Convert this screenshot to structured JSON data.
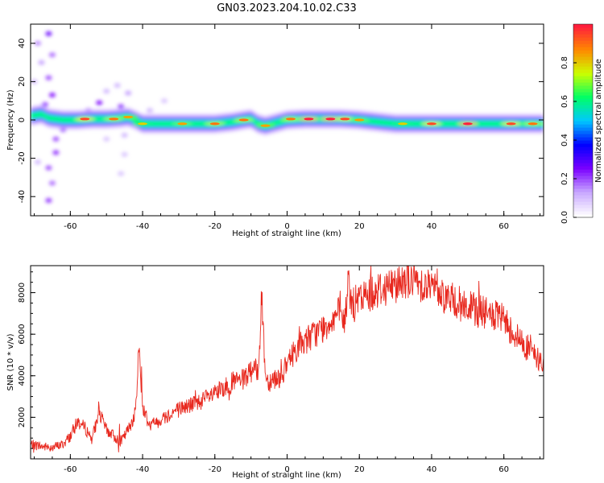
{
  "title": "GN03.2023.204.10.02.C33",
  "colors": {
    "snr_line": "#e8281e",
    "axis": "#000000",
    "background": "#ffffff",
    "colormap": [
      "#ffffff",
      "#c8a8ff",
      "#7a00ff",
      "#0000ff",
      "#00c8ff",
      "#00ff66",
      "#ccff00",
      "#ff8800",
      "#ff1e3c"
    ]
  },
  "chart_data": [
    {
      "type": "heatmap",
      "xlabel": "Height of straight line (km)",
      "ylabel": "Frequency (Hz)",
      "xlim": [
        -71,
        71
      ],
      "ylim": [
        -50,
        50
      ],
      "xticks": [
        -60,
        -40,
        -20,
        0,
        20,
        40,
        60
      ],
      "yticks": [
        -40,
        -20,
        0,
        20,
        40
      ],
      "colorbar": {
        "label": "Normalized spectral amplitude",
        "range": [
          0,
          1
        ],
        "ticks": [
          "0.0",
          "0.2",
          "0.4",
          "0.6",
          "0.8"
        ]
      },
      "ridge": {
        "x": [
          -71,
          -68,
          -66,
          -62,
          -58,
          -54,
          -50,
          -46,
          -44,
          -42,
          -40,
          -35,
          -30,
          -25,
          -20,
          -15,
          -12,
          -10,
          -8,
          -6,
          -4,
          -2,
          0,
          5,
          10,
          15,
          20,
          25,
          30,
          35,
          40,
          50,
          60,
          71
        ],
        "y": [
          2,
          3,
          1,
          0,
          0,
          0.5,
          0.5,
          1,
          1.5,
          0,
          -2,
          -2,
          -2,
          -2,
          -2,
          -1,
          0,
          0.5,
          -2,
          -3,
          -2,
          -1,
          0,
          0.5,
          0.5,
          0.5,
          0,
          -1,
          -2,
          -2,
          -2,
          -2,
          -2,
          -2
        ]
      },
      "hotspots": [
        {
          "x": -56,
          "y": 0.5,
          "amp": 0.95
        },
        {
          "x": -48,
          "y": 0.5,
          "amp": 0.9
        },
        {
          "x": -44,
          "y": 1.5,
          "amp": 0.85
        },
        {
          "x": -40,
          "y": -2,
          "amp": 0.8
        },
        {
          "x": -29,
          "y": -2,
          "amp": 0.85
        },
        {
          "x": -20,
          "y": -2,
          "amp": 0.9
        },
        {
          "x": -12,
          "y": 0,
          "amp": 0.9
        },
        {
          "x": -6,
          "y": -3,
          "amp": 0.85
        },
        {
          "x": 1,
          "y": 0.5,
          "amp": 0.9
        },
        {
          "x": 6,
          "y": 0.5,
          "amp": 1.0
        },
        {
          "x": 12,
          "y": 0.5,
          "amp": 1.0
        },
        {
          "x": 16,
          "y": 0.5,
          "amp": 0.95
        },
        {
          "x": 20,
          "y": 0,
          "amp": 0.85
        },
        {
          "x": 32,
          "y": -2,
          "amp": 0.8
        },
        {
          "x": 40,
          "y": -2,
          "amp": 0.95
        },
        {
          "x": 50,
          "y": -2,
          "amp": 1.0
        },
        {
          "x": 62,
          "y": -2,
          "amp": 0.95
        },
        {
          "x": 68,
          "y": -2,
          "amp": 0.9
        }
      ],
      "scatter_blobs": [
        {
          "x": -69,
          "y": 40,
          "amp": 0.35
        },
        {
          "x": -68,
          "y": 30,
          "amp": 0.3
        },
        {
          "x": -66,
          "y": 45,
          "amp": 0.6
        },
        {
          "x": -65,
          "y": 34,
          "amp": 0.4
        },
        {
          "x": -66,
          "y": 22,
          "amp": 0.45
        },
        {
          "x": -65,
          "y": 13,
          "amp": 0.55
        },
        {
          "x": -67,
          "y": 8,
          "amp": 0.5
        },
        {
          "x": -64,
          "y": -10,
          "amp": 0.45
        },
        {
          "x": -64,
          "y": -17,
          "amp": 0.5
        },
        {
          "x": -66,
          "y": -25,
          "amp": 0.45
        },
        {
          "x": -65,
          "y": -33,
          "amp": 0.4
        },
        {
          "x": -66,
          "y": -42,
          "amp": 0.5
        },
        {
          "x": -69,
          "y": -22,
          "amp": 0.25
        },
        {
          "x": -62,
          "y": -5,
          "amp": 0.5
        },
        {
          "x": -70,
          "y": 20,
          "amp": 0.25
        },
        {
          "x": -52,
          "y": 9,
          "amp": 0.55
        },
        {
          "x": -55,
          "y": 5,
          "amp": 0.35
        },
        {
          "x": -46,
          "y": 7,
          "amp": 0.5
        },
        {
          "x": -44,
          "y": 14,
          "amp": 0.3
        },
        {
          "x": -47,
          "y": 18,
          "amp": 0.25
        },
        {
          "x": -50,
          "y": 15,
          "amp": 0.25
        },
        {
          "x": -45,
          "y": -8,
          "amp": 0.25
        },
        {
          "x": -45,
          "y": -18,
          "amp": 0.2
        },
        {
          "x": -46,
          "y": -28,
          "amp": 0.2
        },
        {
          "x": -50,
          "y": -10,
          "amp": 0.2
        },
        {
          "x": -38,
          "y": 5,
          "amp": 0.25
        },
        {
          "x": -34,
          "y": 10,
          "amp": 0.2
        }
      ]
    },
    {
      "type": "line",
      "series": [
        {
          "values_ref": "snr"
        }
      ],
      "xlabel": "Height of straight line (km)",
      "ylabel": "SNR (10 * v/v)",
      "xlim": [
        -71,
        71
      ],
      "ylim": [
        0,
        9300
      ],
      "xticks": [
        -60,
        -40,
        -20,
        0,
        20,
        40,
        60
      ],
      "yticks": [
        2000,
        4000,
        6000,
        8000
      ],
      "x": [
        -71,
        -68,
        -65,
        -62,
        -60,
        -58,
        -56,
        -54,
        -52,
        -50,
        -48,
        -46,
        -44,
        -42,
        -41,
        -40,
        -38,
        -35,
        -30,
        -25,
        -20,
        -15,
        -12,
        -10,
        -8,
        -7,
        -6,
        -5,
        -4,
        -2,
        0,
        2,
        5,
        10,
        14,
        16,
        17,
        18,
        22,
        26,
        30,
        32,
        35,
        40,
        45,
        50,
        55,
        60,
        62,
        65,
        68,
        71
      ],
      "y": [
        700,
        600,
        550,
        700,
        1100,
        1800,
        1500,
        1000,
        2200,
        1400,
        1100,
        800,
        1400,
        2200,
        5400,
        2500,
        1600,
        1900,
        2400,
        2700,
        3100,
        3700,
        3800,
        4200,
        4300,
        7800,
        4000,
        3700,
        3900,
        3900,
        4500,
        5200,
        5700,
        6300,
        7000,
        6600,
        8600,
        7400,
        7900,
        8200,
        8400,
        8700,
        8600,
        8300,
        7700,
        7300,
        7000,
        6700,
        6200,
        5600,
        5100,
        4500
      ]
    }
  ]
}
